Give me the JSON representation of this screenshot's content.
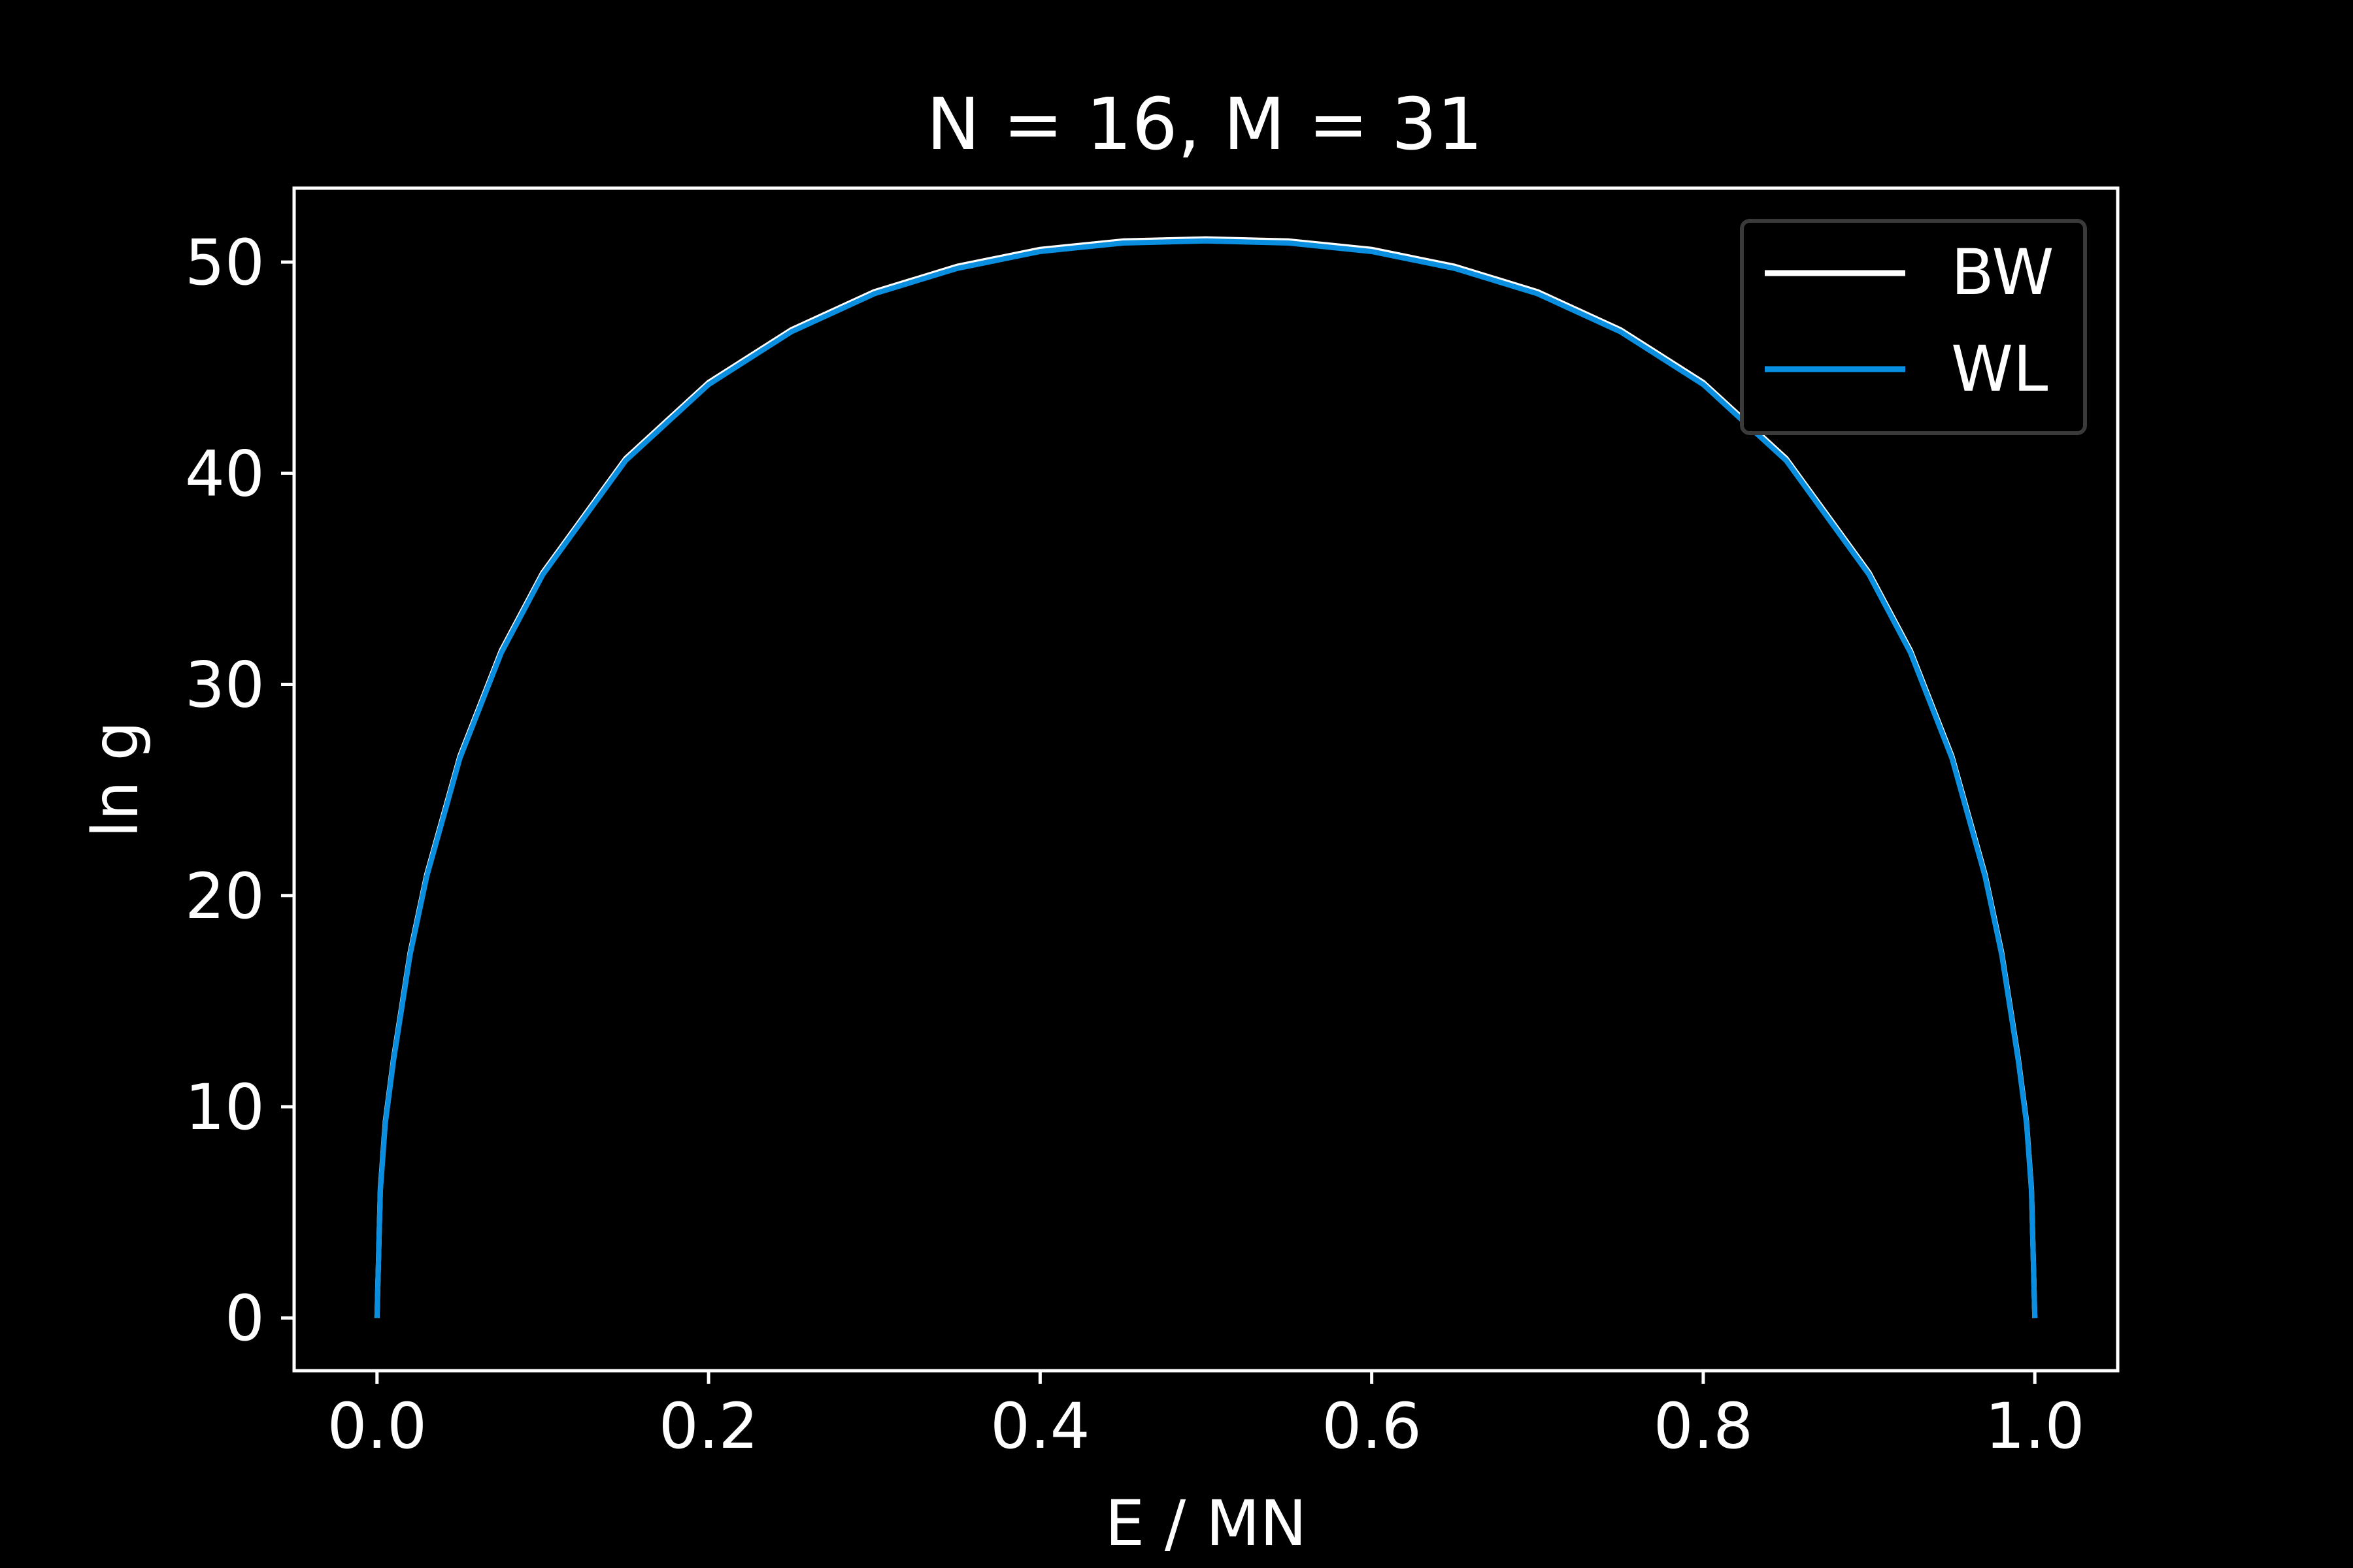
{
  "colors": {
    "background": "#000000",
    "foreground": "#ffffff",
    "bw_line": "#ffffff",
    "wl_line": "#0a8fe0",
    "legend_frame": "#3a3a3a"
  },
  "chart_data": {
    "type": "line",
    "title": "N = 16, M = 31",
    "xlabel": "E / MN",
    "ylabel": "ln g",
    "xlim": [
      -0.05,
      1.05
    ],
    "ylim": [
      -2.5,
      53.5
    ],
    "xticks": [
      0.0,
      0.2,
      0.4,
      0.6,
      0.8,
      1.0
    ],
    "xtick_labels": [
      "0.0",
      "0.2",
      "0.4",
      "0.6",
      "0.8",
      "1.0"
    ],
    "yticks": [
      0,
      10,
      20,
      30,
      40,
      50
    ],
    "ytick_labels": [
      "0",
      "10",
      "20",
      "30",
      "40",
      "50"
    ],
    "grid": false,
    "legend_position": "upper right",
    "series": [
      {
        "name": "BW",
        "color": "#ffffff",
        "x": [
          0.0,
          0.002,
          0.005,
          0.01,
          0.02,
          0.03,
          0.05,
          0.075,
          0.1,
          0.15,
          0.2,
          0.25,
          0.3,
          0.35,
          0.4,
          0.45,
          0.5,
          0.55,
          0.6,
          0.65,
          0.7,
          0.75,
          0.8,
          0.85,
          0.9,
          0.925,
          0.95,
          0.97,
          0.98,
          0.99,
          0.995,
          0.998,
          1.0
        ],
        "y": [
          0.0,
          6.1,
          9.3,
          12.3,
          17.3,
          21.0,
          26.6,
          31.6,
          35.3,
          40.7,
          44.3,
          46.8,
          48.6,
          49.8,
          50.6,
          51.0,
          51.1,
          51.0,
          50.6,
          49.8,
          48.6,
          46.8,
          44.3,
          40.7,
          35.3,
          31.6,
          26.6,
          21.0,
          17.3,
          12.3,
          9.3,
          6.1,
          0.0
        ]
      },
      {
        "name": "WL",
        "color": "#0a8fe0",
        "x": [
          0.0,
          0.002,
          0.005,
          0.01,
          0.02,
          0.03,
          0.05,
          0.075,
          0.1,
          0.15,
          0.2,
          0.25,
          0.3,
          0.35,
          0.4,
          0.45,
          0.5,
          0.55,
          0.6,
          0.65,
          0.7,
          0.75,
          0.8,
          0.85,
          0.9,
          0.925,
          0.95,
          0.97,
          0.98,
          0.99,
          0.995,
          0.998,
          1.0
        ],
        "y": [
          0.0,
          6.0,
          9.2,
          12.2,
          17.2,
          20.9,
          26.5,
          31.5,
          35.2,
          40.6,
          44.2,
          46.7,
          48.5,
          49.7,
          50.5,
          50.9,
          51.0,
          50.9,
          50.5,
          49.7,
          48.5,
          46.7,
          44.2,
          40.6,
          35.2,
          31.5,
          26.5,
          20.9,
          17.2,
          12.2,
          9.2,
          6.0,
          0.0
        ]
      }
    ]
  }
}
